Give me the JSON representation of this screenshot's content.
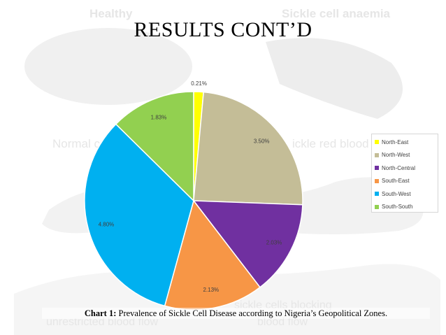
{
  "background": {
    "texts": [
      "Healthy",
      "Sickle cell anaemia",
      "Normal c",
      "ickle red blood c",
      "sickle cells blocking",
      "unrestricted blood flow",
      "blood flow"
    ]
  },
  "slide_title": "RESULTS CONT’D",
  "caption": {
    "label": "Chart 1:",
    "text": "Prevalence of Sickle Cell Disease according to Nigeria’s Geopolitical Zones."
  },
  "chart_data": {
    "type": "pie",
    "categories": [
      "North-East",
      "North-West",
      "North-Central",
      "South-East",
      "South-West",
      "South-South"
    ],
    "values": [
      0.21,
      3.5,
      2.03,
      2.13,
      4.8,
      1.83
    ],
    "data_labels": [
      "0.21%",
      "3.50%",
      "2.03%",
      "2.13%",
      "4.80%",
      "1.83%"
    ],
    "colors": [
      "#ffff00",
      "#c4bd97",
      "#7030a0",
      "#f79646",
      "#00b0f0",
      "#92d050"
    ],
    "legend_position": "right",
    "start_angle_deg": 0,
    "direction": "clockwise"
  }
}
